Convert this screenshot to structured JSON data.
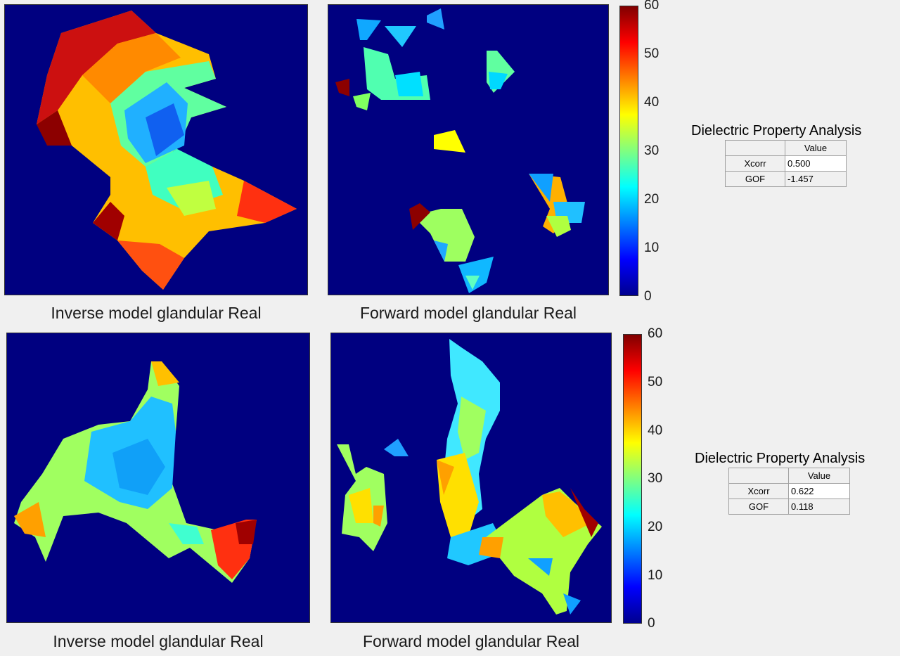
{
  "colors": {
    "background": "#000080",
    "accent": "#1a1a1a"
  },
  "panels": [
    {
      "caption": "Inverse model glandular Real"
    },
    {
      "caption": "Forward model glandular Real"
    },
    {
      "caption": "Inverse model glandular Real"
    },
    {
      "caption": "Forward model glandular Real"
    }
  ],
  "colorbars": [
    {
      "ticks": [
        "60",
        "50",
        "40",
        "30",
        "20",
        "10",
        "0"
      ]
    },
    {
      "ticks": [
        "60",
        "50",
        "40",
        "30",
        "20",
        "10",
        "0"
      ]
    }
  ],
  "analysis": [
    {
      "title": "Dielectric Property Analysis",
      "col_header": "Value",
      "rows": [
        {
          "label": "Xcorr",
          "value": "0.500"
        },
        {
          "label": "GOF",
          "value": "-1.457"
        }
      ]
    },
    {
      "title": "Dielectric Property Analysis",
      "col_header": "Value",
      "rows": [
        {
          "label": "Xcorr",
          "value": "0.622"
        },
        {
          "label": "GOF",
          "value": "0.118"
        }
      ]
    }
  ]
}
